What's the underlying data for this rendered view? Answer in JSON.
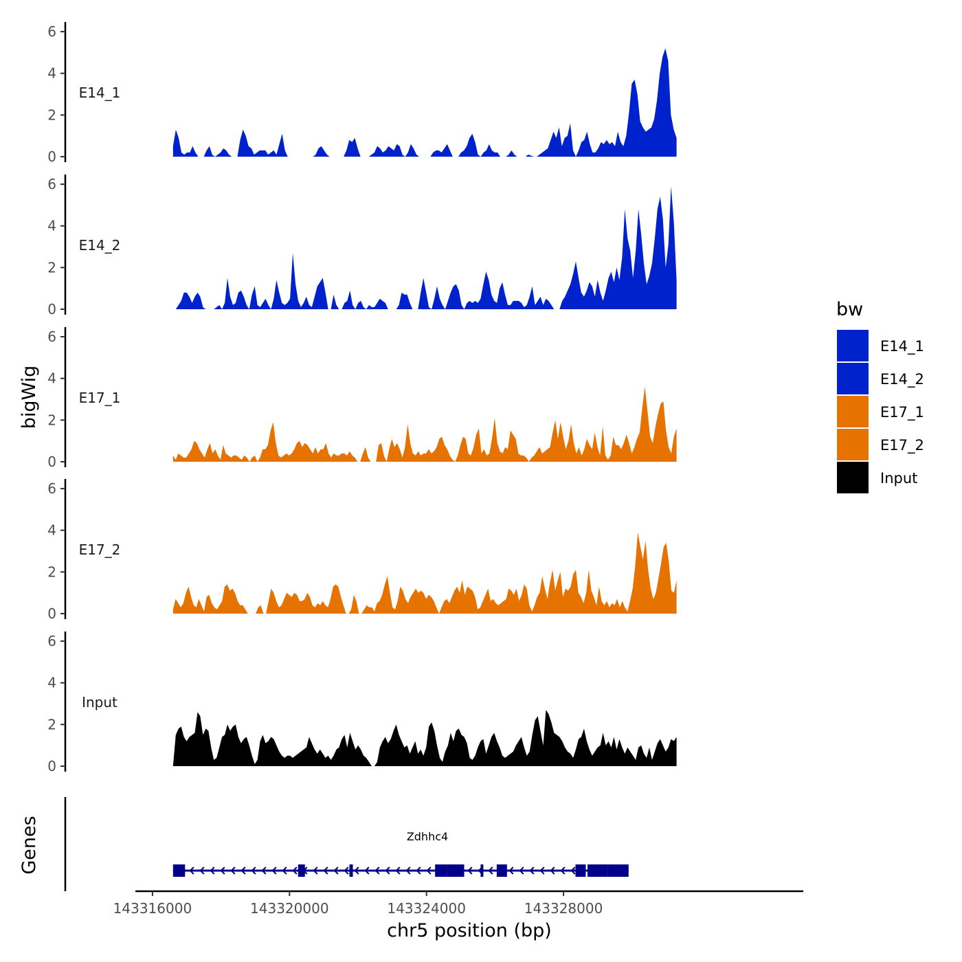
{
  "chart_data": {
    "type": "area",
    "ylabel": "bigWig",
    "xlabel": "chr5 position (bp)",
    "xlim": [
      143315500,
      143335000
    ],
    "x_ticks": [
      143316000,
      143320000,
      143324000,
      143328000
    ],
    "x_tick_labels": [
      "143316000",
      "143320000",
      "143324000",
      "143328000"
    ],
    "ylim": [
      0,
      6.2
    ],
    "y_ticks": [
      0,
      2,
      4,
      6
    ],
    "y_tick_labels": [
      "0",
      "2",
      "4",
      "6"
    ],
    "data_range": [
      143316600,
      143331300
    ],
    "legend": {
      "title": "bw",
      "position": "right",
      "entries": [
        {
          "label": "E14_1",
          "color": "#0022CC"
        },
        {
          "label": "E14_2",
          "color": "#0022CC"
        },
        {
          "label": "E17_1",
          "color": "#E67200"
        },
        {
          "label": "E17_2",
          "color": "#E67200"
        },
        {
          "label": "Input",
          "color": "#000000"
        }
      ]
    },
    "series": [
      {
        "name": "E14_1",
        "color": "#0022CC",
        "values": [
          0.5,
          1.3,
          0.9,
          0.2,
          0.1,
          0.2,
          0.2,
          0.5,
          0.2,
          0,
          0,
          0,
          0.3,
          0.5,
          0.1,
          0,
          0.1,
          0.2,
          0.4,
          0.3,
          0.1,
          0,
          0,
          0,
          0.8,
          1.3,
          1.0,
          0.5,
          0.4,
          0.1,
          0.2,
          0.3,
          0.3,
          0.3,
          0.1,
          0.2,
          0.3,
          0.1,
          0.6,
          1.1,
          0.3,
          0,
          0,
          0,
          0,
          0,
          0,
          0,
          0,
          0,
          0,
          0.1,
          0.4,
          0.5,
          0.3,
          0.1,
          0,
          0,
          0,
          0,
          0,
          0,
          0.3,
          0.8,
          0.7,
          0.9,
          0.4,
          0,
          0,
          0,
          0,
          0.1,
          0.2,
          0.5,
          0.4,
          0.2,
          0.3,
          0.5,
          0.4,
          0.3,
          0.6,
          0.5,
          0.1,
          0,
          0.2,
          0.6,
          0.4,
          0.1,
          0,
          0,
          0,
          0,
          0,
          0.2,
          0.3,
          0.3,
          0.2,
          0.4,
          0.6,
          0.3,
          0,
          0,
          0,
          0.2,
          0.3,
          0.5,
          0.9,
          1.1,
          0.7,
          0.1,
          0,
          0.2,
          0.3,
          0.6,
          0.3,
          0.2,
          0.2,
          0,
          0,
          0,
          0.1,
          0.3,
          0.1,
          0,
          0,
          0,
          0,
          0.1,
          0.05,
          0,
          0,
          0.1,
          0.2,
          0.3,
          0.4,
          0.8,
          1.2,
          0.9,
          1.4,
          0.5,
          0.9,
          1.0,
          1.6,
          0.3,
          0,
          0.3,
          0.7,
          0.8,
          1.2,
          0.6,
          0.2,
          0.2,
          0.4,
          0.7,
          0.6,
          0.8,
          0.6,
          0.7,
          0.5,
          1.2,
          0.7,
          0.5,
          1.0,
          2.1,
          3.5,
          3.7,
          3.0,
          1.7,
          1.4,
          1.2,
          1.3,
          1.4,
          1.8,
          2.7,
          4.0,
          4.8,
          5.2,
          4.6,
          2.0,
          1.3,
          0.9
        ]
      },
      {
        "name": "E14_2",
        "color": "#0022CC",
        "values": [
          0,
          0,
          0.2,
          0.4,
          0.8,
          0.8,
          0.6,
          0.3,
          0.6,
          0.8,
          0.6,
          0.1,
          0,
          0,
          0,
          0,
          0.1,
          0.2,
          0,
          0.3,
          1.5,
          0.6,
          0.2,
          0.3,
          0.8,
          0.9,
          0.6,
          0.2,
          0,
          0.7,
          1.1,
          0.2,
          0.1,
          0.3,
          0.5,
          0.2,
          0,
          0.5,
          1.4,
          0.8,
          0.3,
          0.2,
          0.3,
          0.5,
          2.7,
          1.2,
          0.4,
          0.1,
          0.3,
          0.6,
          0.2,
          0.1,
          0.6,
          1.1,
          1.3,
          1.5,
          0.8,
          0,
          0,
          0.7,
          0.2,
          0,
          0,
          0.3,
          0.4,
          0.9,
          0.2,
          0,
          0.3,
          0.4,
          0.1,
          0,
          0.2,
          0.1,
          0.1,
          0.3,
          0.5,
          0.4,
          0.3,
          0,
          0,
          0,
          0,
          0.2,
          0.8,
          0.7,
          0.7,
          0.3,
          0,
          0,
          0,
          0.8,
          1.5,
          0.8,
          0.1,
          0,
          0.5,
          1.1,
          0.5,
          0.2,
          0,
          0.4,
          0.8,
          1.1,
          1.2,
          0.9,
          0.2,
          0,
          0.3,
          0.4,
          0.3,
          0.4,
          0.3,
          0.5,
          1.2,
          1.8,
          1.4,
          0.7,
          0.4,
          0.3,
          1.0,
          1.3,
          0.7,
          0.2,
          0.2,
          0.4,
          0.4,
          0.4,
          0.3,
          0.1,
          0.2,
          0.6,
          1.1,
          0.2,
          0.4,
          0.6,
          0.2,
          0.5,
          0.4,
          0.2,
          0,
          0,
          0,
          0.4,
          0.6,
          0.9,
          1.2,
          1.7,
          2.3,
          1.5,
          0.8,
          0.6,
          0.9,
          1.3,
          1.1,
          0.6,
          1.4,
          0.8,
          0.4,
          0.9,
          1.5,
          1.8,
          1.3,
          2.0,
          1.4,
          2.5,
          4.8,
          3.4,
          2.8,
          1.5,
          2.8,
          4.8,
          3.6,
          2.2,
          1.2,
          1.6,
          2.2,
          3.4,
          4.8,
          5.4,
          4.3,
          2.0,
          3.1,
          5.9,
          4.2,
          1.4
        ]
      },
      {
        "name": "E17_1",
        "color": "#E67200",
        "values": [
          0.3,
          0.1,
          0.4,
          0.3,
          0.2,
          0.2,
          0.4,
          0.6,
          1.0,
          0.9,
          0.6,
          0.4,
          0.2,
          0.6,
          0.9,
          0.4,
          0.6,
          0.3,
          0.1,
          0.8,
          0.4,
          0.3,
          0.2,
          0.3,
          0.3,
          0.2,
          0.1,
          0.3,
          0.2,
          0,
          0.2,
          0.3,
          0,
          0.2,
          0.6,
          0.6,
          0.8,
          1.5,
          1.9,
          0.9,
          0.3,
          0.2,
          0.3,
          0.4,
          0.3,
          0.4,
          0.6,
          0.9,
          1.0,
          0.7,
          0.9,
          0.8,
          0.6,
          0.4,
          0.7,
          0.4,
          0.6,
          0.6,
          0.9,
          0.4,
          0.2,
          0.4,
          0.3,
          0.3,
          0.4,
          0.4,
          0.3,
          0.5,
          0.3,
          0.2,
          0,
          0,
          0.4,
          0.7,
          0.2,
          0,
          0,
          0,
          0.8,
          0.9,
          0.3,
          0,
          0.6,
          1.1,
          0.7,
          0.9,
          0.6,
          0.2,
          0.7,
          1.8,
          0.9,
          0.4,
          0.3,
          0.5,
          0.3,
          0.4,
          0.4,
          0.6,
          0.4,
          0.5,
          0.7,
          1.1,
          1.2,
          0.8,
          0.6,
          0.3,
          0.1,
          0,
          0.3,
          0.8,
          1.2,
          1.1,
          0.4,
          0.3,
          0.7,
          1.3,
          1.6,
          0.4,
          0.6,
          0.3,
          0.4,
          1.1,
          2.1,
          0.9,
          0.5,
          0.4,
          0.7,
          0.6,
          1.5,
          1.3,
          1.1,
          0.4,
          0.3,
          0.3,
          0.2,
          0,
          0.2,
          0.3,
          0.5,
          0.7,
          0.4,
          0.5,
          0.6,
          0.7,
          1.4,
          2.0,
          1.1,
          1.9,
          1.2,
          0.6,
          1.0,
          1.8,
          0.9,
          0.4,
          0.7,
          0.3,
          0.6,
          1.1,
          0.8,
          0.6,
          1.4,
          0.7,
          0.3,
          1.7,
          0.3,
          0.1,
          0.3,
          1.2,
          0.8,
          0.8,
          0.6,
          0.9,
          1.3,
          0.9,
          0.4,
          0.7,
          1.1,
          1.4,
          2.6,
          3.6,
          2.4,
          1.2,
          0.9,
          1.7,
          2.3,
          2.8,
          2.9,
          1.5,
          0.7,
          0.4,
          1.2,
          1.6
        ]
      },
      {
        "name": "E17_2",
        "color": "#E67200",
        "values": [
          0.2,
          0.7,
          0.5,
          0.3,
          0.5,
          1.0,
          1.3,
          0.8,
          0.4,
          0.3,
          0.7,
          0.4,
          0.1,
          0.8,
          0.9,
          0.5,
          0.3,
          0.2,
          0.4,
          0.6,
          1.3,
          1.4,
          1.1,
          1.2,
          1.0,
          0.6,
          0.4,
          0.4,
          0.2,
          0,
          0,
          0,
          0,
          0.3,
          0.4,
          0,
          0,
          0.6,
          1.2,
          1.0,
          0.6,
          0.3,
          0.4,
          0.7,
          1.0,
          0.9,
          0.8,
          1.0,
          0.9,
          0.6,
          0.6,
          0.7,
          1.0,
          0.8,
          0.4,
          0.3,
          0.5,
          0.4,
          0.6,
          0.4,
          0.3,
          0.7,
          1.3,
          1.4,
          1.3,
          0.8,
          0.4,
          0,
          0,
          0.2,
          0.9,
          0.6,
          0,
          0,
          0.2,
          0.4,
          0.3,
          0.3,
          0.1,
          0.5,
          0.6,
          0.9,
          1.4,
          1.8,
          1.0,
          0.3,
          0.2,
          0.6,
          1.3,
          1.1,
          0.7,
          0.5,
          0.8,
          1.0,
          1.2,
          1.0,
          1.1,
          1.0,
          0.7,
          0.9,
          0.8,
          0.6,
          0.3,
          0,
          0.3,
          0.6,
          0.7,
          0.5,
          0.8,
          1.1,
          1.3,
          1.0,
          1.6,
          0.9,
          1.3,
          1.2,
          1.1,
          0.8,
          0.2,
          0.3,
          0.6,
          0.9,
          1.2,
          0.6,
          0.7,
          0.5,
          0.4,
          0.5,
          0.6,
          0.7,
          1.2,
          1.1,
          0.9,
          1.2,
          0.6,
          0.9,
          1.4,
          1.2,
          0.4,
          0.1,
          0.4,
          0.8,
          1.0,
          1.8,
          1.2,
          0.7,
          1.5,
          2.1,
          1.1,
          1.6,
          2.0,
          0.8,
          1.2,
          1.1,
          1.3,
          1.9,
          2.1,
          1.0,
          0.8,
          0.5,
          1.0,
          2.1,
          1.1,
          0.8,
          0.4,
          1.3,
          0.6,
          0.4,
          0.6,
          0.3,
          0.5,
          0.4,
          0.7,
          0.3,
          0.6,
          0.3,
          0.1,
          0.6,
          1.2,
          2.3,
          3.9,
          3.2,
          2.6,
          3.5,
          2.1,
          1.2,
          0.7,
          1.0,
          1.7,
          2.4,
          3.2,
          3.4,
          2.5,
          1.1,
          1.0,
          1.6
        ]
      },
      {
        "name": "Input",
        "color": "#000000",
        "values": [
          0,
          1.5,
          1.8,
          1.9,
          1.4,
          1.2,
          1.4,
          1.5,
          1.6,
          2.6,
          2.4,
          1.5,
          1.8,
          1.7,
          0.9,
          0.3,
          0.4,
          0.9,
          1.4,
          1.5,
          2.0,
          1.7,
          1.9,
          2.0,
          1.4,
          1.1,
          1.3,
          1.4,
          1.0,
          0.5,
          0.1,
          0.3,
          1.2,
          1.5,
          1.1,
          1.2,
          1.4,
          1.3,
          1.0,
          0.7,
          0.5,
          0.4,
          0.5,
          0.5,
          0.4,
          0.5,
          0.6,
          0.7,
          0.8,
          0.9,
          1.4,
          1.1,
          0.8,
          0.6,
          0.8,
          0.6,
          0.4,
          0.5,
          0.3,
          0.5,
          0.8,
          0.9,
          1.3,
          1.5,
          0.9,
          1.6,
          1.2,
          0.8,
          1.0,
          0.8,
          0.5,
          0.4,
          0.2,
          0,
          0,
          0.2,
          0.9,
          1.2,
          1.4,
          1.1,
          1.3,
          1.7,
          2.0,
          1.5,
          1.2,
          0.9,
          1.0,
          0.6,
          0.9,
          1.2,
          0.6,
          0.8,
          0.5,
          0.9,
          1.9,
          2.1,
          1.7,
          1.0,
          0.4,
          0.2,
          0.7,
          1.0,
          1.6,
          1.2,
          1.7,
          1.8,
          1.5,
          1.4,
          1.1,
          0.4,
          0.3,
          0.5,
          0.9,
          1.2,
          1.3,
          0.6,
          1.0,
          1.4,
          1.6,
          1.2,
          0.9,
          0.5,
          0.4,
          0.5,
          0.6,
          0.7,
          1.0,
          1.2,
          1.4,
          0.9,
          0.5,
          0.7,
          1.5,
          2.2,
          2.4,
          1.7,
          1.0,
          2.7,
          2.5,
          2.1,
          1.6,
          1.5,
          1.4,
          1.2,
          0.9,
          0.7,
          0.6,
          0.4,
          0.8,
          1.3,
          1.4,
          1.8,
          1.2,
          0.8,
          0.5,
          0.7,
          0.9,
          1.0,
          1.6,
          1.0,
          1.2,
          0.9,
          1.4,
          0.8,
          1.3,
          0.9,
          0.6,
          0.9,
          0.7,
          0.5,
          0.3,
          0.9,
          1.0,
          0.6,
          0.4,
          0.9,
          0.3,
          0.7,
          1.1,
          1.3,
          1.0,
          0.7,
          0.9,
          1.3,
          1.2,
          1.4
        ]
      }
    ],
    "gene_track": {
      "ylabel": "Genes",
      "gene_name": "Zdhhc4",
      "strand": "-",
      "start": 143316600,
      "end": 143329900,
      "exons": [
        [
          143316600,
          143316950
        ],
        [
          143320250,
          143320450
        ],
        [
          143321750,
          143321850
        ],
        [
          143324250,
          143324600
        ],
        [
          143324600,
          143325100
        ],
        [
          143325580,
          143325650
        ],
        [
          143326050,
          143326350
        ],
        [
          143328350,
          143328650
        ],
        [
          143328700,
          143329300
        ],
        [
          143329300,
          143329900
        ]
      ]
    }
  }
}
